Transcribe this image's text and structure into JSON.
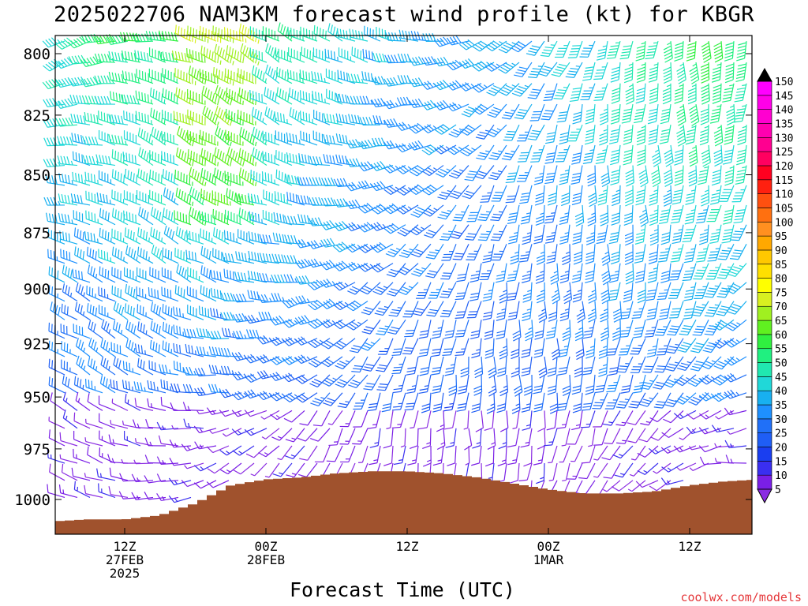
{
  "page": {
    "title": "2025022706 NAM3KM forecast wind profile (kt) for KBGR",
    "xlabel": "Forecast Time (UTC)",
    "credit": "coolwx.com/models"
  },
  "chart_data": {
    "type": "wind-barb time-height section",
    "title": "2025022706 NAM3KM forecast wind profile (kt) for KBGR",
    "xlabel": "Forecast Time (UTC)",
    "ylabel": "",
    "y_axis": {
      "ticks": [
        800,
        825,
        850,
        875,
        900,
        925,
        950,
        975,
        1000
      ],
      "reversed": true,
      "scale": "log"
    },
    "x_axis": {
      "ticks": [
        {
          "time": "2025-02-27T12Z",
          "lines": [
            "12Z",
            "27FEB",
            "2025"
          ]
        },
        {
          "time": "2025-02-28T00Z",
          "lines": [
            "00Z",
            "28FEB"
          ]
        },
        {
          "time": "2025-02-28T12Z",
          "lines": [
            "12Z"
          ]
        },
        {
          "time": "2025-03-01T00Z",
          "lines": [
            "00Z",
            "1MAR"
          ]
        },
        {
          "time": "2025-03-01T12Z",
          "lines": [
            "12Z"
          ]
        }
      ]
    },
    "colorbar": {
      "units": "kt",
      "levels": [
        5,
        10,
        15,
        20,
        25,
        30,
        35,
        40,
        45,
        50,
        55,
        60,
        65,
        70,
        75,
        80,
        85,
        90,
        95,
        100,
        105,
        110,
        115,
        120,
        125,
        130,
        135,
        140,
        145,
        150
      ],
      "colors": [
        "#8a2be2",
        "#7a1fe6",
        "#3a2ff0",
        "#1a3ef0",
        "#1f5ef5",
        "#2070f8",
        "#1e90ff",
        "#18b0f0",
        "#20d8d8",
        "#20e8b0",
        "#20f080",
        "#30f040",
        "#60f020",
        "#a0f020",
        "#d8f020",
        "#ffff00",
        "#ffe000",
        "#ffc800",
        "#ffa800",
        "#ff9020",
        "#ff7010",
        "#ff5010",
        "#ff2010",
        "#ff0020",
        "#ff0060",
        "#ff0090",
        "#ff00b0",
        "#ff00d0",
        "#ff00e8",
        "#ff00ff"
      ]
    },
    "surface_pressure": {
      "times": [
        "2025-02-27T06Z",
        "2025-02-27T09Z",
        "2025-02-27T12Z",
        "2025-02-27T15Z",
        "2025-02-27T18Z",
        "2025-02-27T21Z",
        "2025-02-28T00Z",
        "2025-02-28T03Z",
        "2025-02-28T06Z",
        "2025-02-28T09Z",
        "2025-02-28T12Z",
        "2025-02-28T15Z",
        "2025-02-28T18Z",
        "2025-02-28T21Z",
        "2025-03-01T00Z",
        "2025-03-01T03Z",
        "2025-03-01T06Z",
        "2025-03-01T09Z",
        "2025-03-01T12Z",
        "2025-03-01T15Z",
        "2025-03-01T18Z"
      ],
      "values": [
        1011,
        1010,
        1010,
        1008,
        1002,
        993,
        990,
        989,
        987,
        986,
        986,
        987,
        989,
        992,
        995,
        997,
        997,
        996,
        993,
        991,
        990
      ]
    },
    "ground_color": "#a0522d"
  }
}
